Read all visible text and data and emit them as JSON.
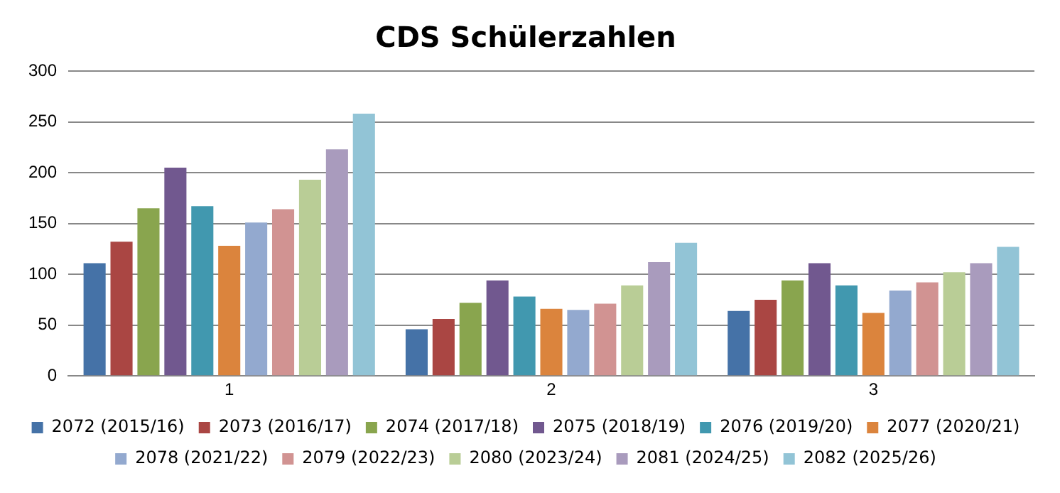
{
  "chart_data": {
    "type": "bar",
    "title": "CDS Schülerzahlen",
    "categories": [
      "1",
      "2",
      "3"
    ],
    "series": [
      {
        "name": "2072 (2015/16)",
        "color": "#4572a7",
        "values": [
          111,
          46,
          64
        ]
      },
      {
        "name": "2073 (2016/17)",
        "color": "#aa4643",
        "values": [
          132,
          56,
          75
        ]
      },
      {
        "name": "2074 (2017/18)",
        "color": "#89a54e",
        "values": [
          165,
          72,
          94
        ]
      },
      {
        "name": "2075 (2018/19)",
        "color": "#71588f",
        "values": [
          205,
          94,
          111
        ]
      },
      {
        "name": "2076 (2019/20)",
        "color": "#4198af",
        "values": [
          167,
          78,
          89
        ]
      },
      {
        "name": "2077 (2020/21)",
        "color": "#db843d",
        "values": [
          128,
          66,
          62
        ]
      },
      {
        "name": "2078 (2021/22)",
        "color": "#93a9cf",
        "values": [
          151,
          65,
          84
        ]
      },
      {
        "name": "2079 (2022/23)",
        "color": "#d19392",
        "values": [
          164,
          71,
          92
        ]
      },
      {
        "name": "2080 (2023/24)",
        "color": "#b9cd96",
        "values": [
          193,
          89,
          102
        ]
      },
      {
        "name": "2081 (2024/25)",
        "color": "#a99bbd",
        "values": [
          223,
          112,
          111
        ]
      },
      {
        "name": "2082 (2025/26)",
        "color": "#92c4d6",
        "values": [
          258,
          131,
          127
        ]
      }
    ],
    "ylim": [
      0,
      300
    ],
    "yticks": [
      0,
      50,
      100,
      150,
      200,
      250,
      300
    ],
    "grid": "y",
    "legend": "bottom"
  }
}
